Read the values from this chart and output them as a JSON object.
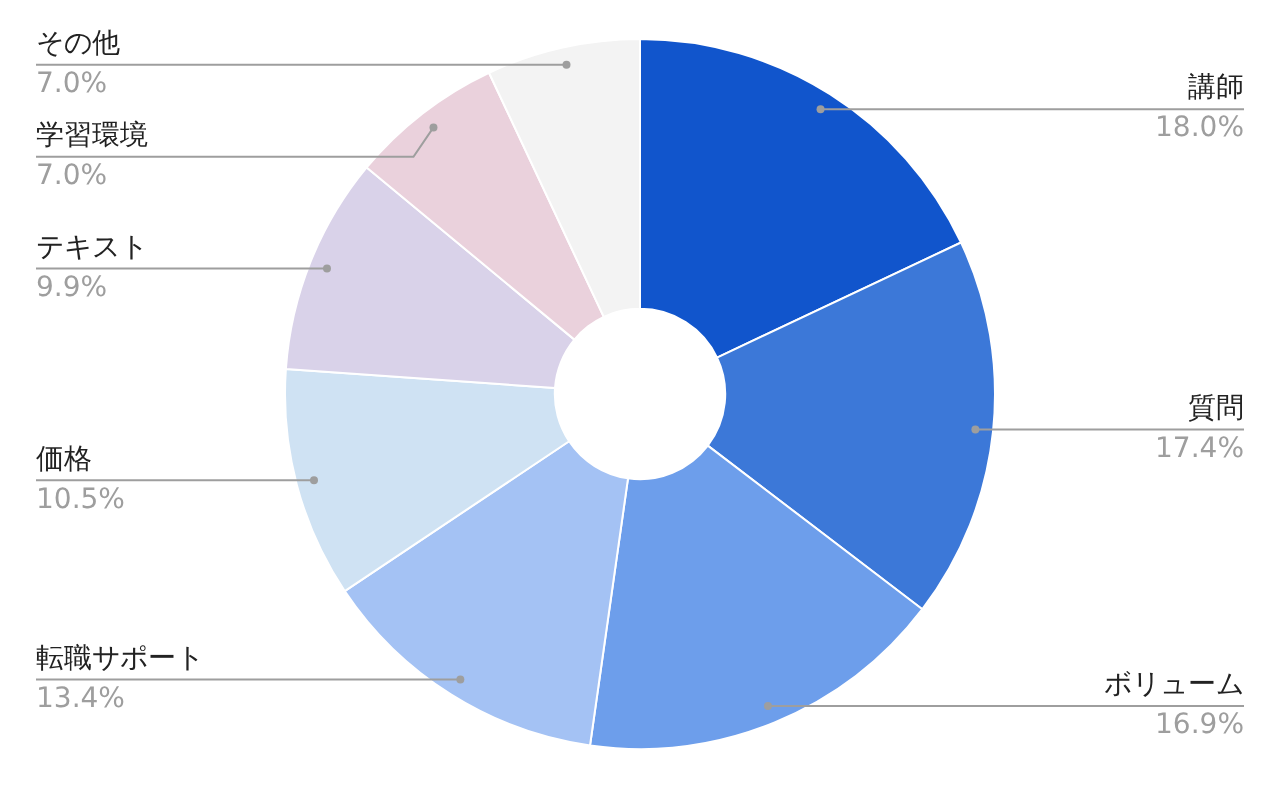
{
  "chart_data": {
    "type": "donut",
    "categories": [
      "講師",
      "質問",
      "ボリューム",
      "転職サポート",
      "価格",
      "テキスト",
      "学習環境",
      "その他"
    ],
    "values": [
      18.0,
      17.4,
      16.9,
      13.4,
      10.5,
      9.9,
      7.0,
      7.0
    ],
    "value_labels": [
      "18.0%",
      "17.4%",
      "16.9%",
      "13.4%",
      "10.5%",
      "9.9%",
      "7.0%",
      "7.0%"
    ],
    "colors": [
      "#1155cc",
      "#3c78d8",
      "#6d9eeb",
      "#a4c2f4",
      "#cfe2f3",
      "#d9d2e9",
      "#ead1dc",
      "#f3f3f3"
    ],
    "legend": false
  }
}
